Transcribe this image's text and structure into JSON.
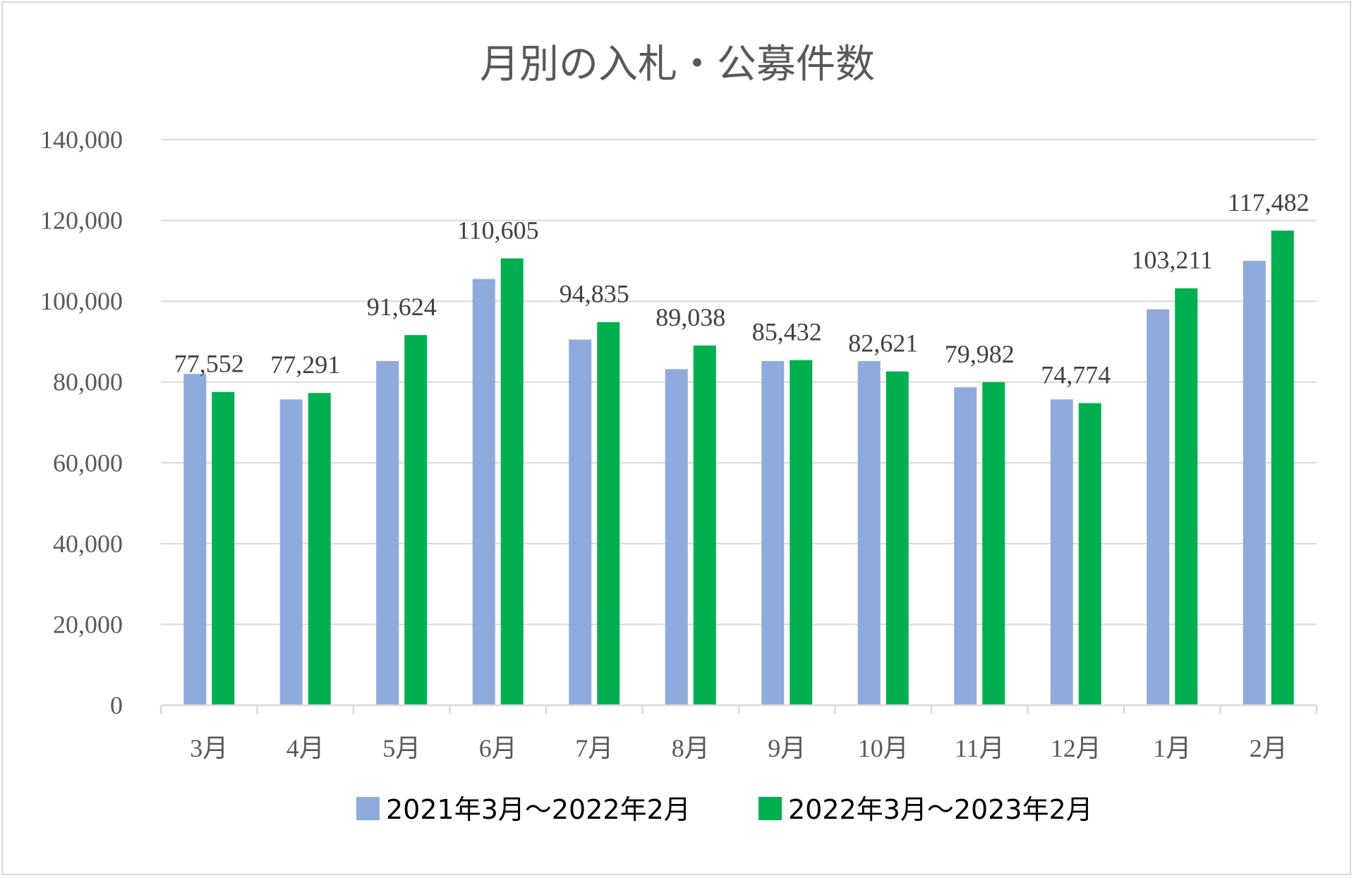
{
  "chart_data": {
    "type": "bar",
    "title": "月別の入札・公募件数",
    "xlabel": "",
    "ylabel": "",
    "categories": [
      "3月",
      "4月",
      "5月",
      "6月",
      "7月",
      "8月",
      "9月",
      "10月",
      "11月",
      "12月",
      "1月",
      "2月"
    ],
    "series": [
      {
        "name": "2021年3月～2022年2月",
        "color": "#8faadc",
        "values": [
          82000,
          75700,
          85200,
          105500,
          90500,
          83200,
          85200,
          85200,
          78700,
          75700,
          98000,
          110000
        ]
      },
      {
        "name": "2022年3月～2023年2月",
        "color": "#00b050",
        "values": [
          77552,
          77291,
          91624,
          110605,
          94835,
          89038,
          85432,
          82621,
          79982,
          74774,
          103211,
          117482
        ],
        "data_labels": [
          "77,552",
          "77,291",
          "91,624",
          "110,605",
          "94,835",
          "89,038",
          "85,432",
          "82,621",
          "79,982",
          "74,774",
          "103,211",
          "117,482"
        ]
      }
    ],
    "ylim": [
      0,
      140000
    ],
    "yticks": [
      "0",
      "20,000",
      "40,000",
      "60,000",
      "80,000",
      "100,000",
      "120,000",
      "140,000"
    ],
    "ytick_values": [
      0,
      20000,
      40000,
      60000,
      80000,
      100000,
      120000,
      140000
    ],
    "grid": true,
    "legend_position": "bottom"
  }
}
